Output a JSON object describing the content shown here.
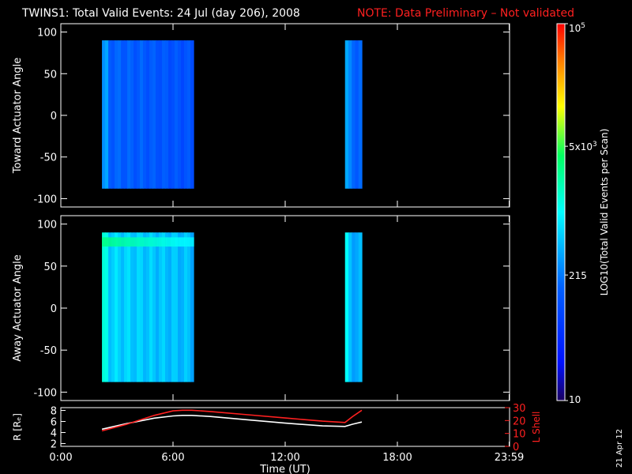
{
  "title": "TWINS1: Total Valid Events: 24 Jul (day 206), 2008",
  "note": "NOTE: Data Preliminary – Not validated",
  "date_stamp": "21 Apr 12",
  "colors": {
    "note": "#ff2020",
    "lshell": "#ff2020",
    "r_line": "#ffffff"
  },
  "chart_data": [
    {
      "type": "heatmap",
      "ylabel": "Toward Actuator Angle",
      "ylim": [
        -110,
        110
      ],
      "yticks": [
        -100,
        -50,
        0,
        50,
        100
      ],
      "xlim": [
        0,
        24
      ],
      "blocks": [
        {
          "x_start": 2.2,
          "x_end": 7.1,
          "y_start": -88,
          "y_end": 90,
          "level": 0.3
        },
        {
          "x_start": 15.2,
          "x_end": 16.1,
          "y_start": -88,
          "y_end": 90,
          "level": 0.33
        }
      ]
    },
    {
      "type": "heatmap",
      "ylabel": "Away Actuator Angle",
      "ylim": [
        -110,
        110
      ],
      "yticks": [
        -100,
        -50,
        0,
        50,
        100
      ],
      "xlim": [
        0,
        24
      ],
      "blocks": [
        {
          "x_start": 2.2,
          "x_end": 7.1,
          "y_start": -88,
          "y_end": 90,
          "level": 0.45
        },
        {
          "x_start": 15.2,
          "x_end": 16.1,
          "y_start": -88,
          "y_end": 90,
          "level": 0.42
        }
      ],
      "hot_band": {
        "x_start": 2.2,
        "x_end": 7.1,
        "y_start": 68,
        "y_end": 88,
        "level": 0.62
      }
    },
    {
      "type": "line",
      "ylabel": "R [Rₑ]",
      "y2label": "L Shell",
      "ylim": [
        1.5,
        8.5
      ],
      "yticks": [
        2,
        4,
        6,
        8
      ],
      "y2lim": [
        0,
        30
      ],
      "y2ticks": [
        0,
        10,
        20,
        30
      ],
      "xlim": [
        0,
        24
      ],
      "xlabel": "Time (UT)",
      "xticks": [
        {
          "v": 0,
          "label": "0:00"
        },
        {
          "v": 6,
          "label": "6:00"
        },
        {
          "v": 12,
          "label": "12:00"
        },
        {
          "v": 18,
          "label": "18:00"
        },
        {
          "v": 23.98,
          "label": "23:59"
        }
      ],
      "series": [
        {
          "axis": "left",
          "x": [
            2.2,
            3.5,
            5.0,
            6.0,
            6.5,
            7.0,
            8.0,
            10.0,
            12.0,
            14.0,
            15.2,
            15.6,
            16.1
          ],
          "y": [
            4.6,
            5.6,
            6.6,
            7.0,
            7.1,
            7.1,
            6.9,
            6.3,
            5.7,
            5.2,
            5.1,
            5.5,
            5.9
          ]
        },
        {
          "axis": "right",
          "x": [
            2.2,
            3.5,
            5.0,
            6.0,
            6.5,
            7.0,
            8.0,
            10.0,
            12.0,
            14.0,
            15.2,
            15.6,
            16.1
          ],
          "y": [
            12,
            17,
            24,
            27.5,
            28,
            28,
            27,
            24.5,
            22,
            19.5,
            18.5,
            23,
            28
          ]
        }
      ]
    }
  ],
  "colorbar": {
    "title": "LOG10(Total Valid Events per Scan)",
    "range": [
      10,
      100000
    ],
    "ticks": [
      {
        "v": 10,
        "label": "10"
      },
      {
        "v": 215,
        "label": "215"
      },
      {
        "v": 5000,
        "label": "5x10",
        "exp": "3"
      },
      {
        "v": 100000,
        "label": "10",
        "exp": "5"
      }
    ]
  }
}
